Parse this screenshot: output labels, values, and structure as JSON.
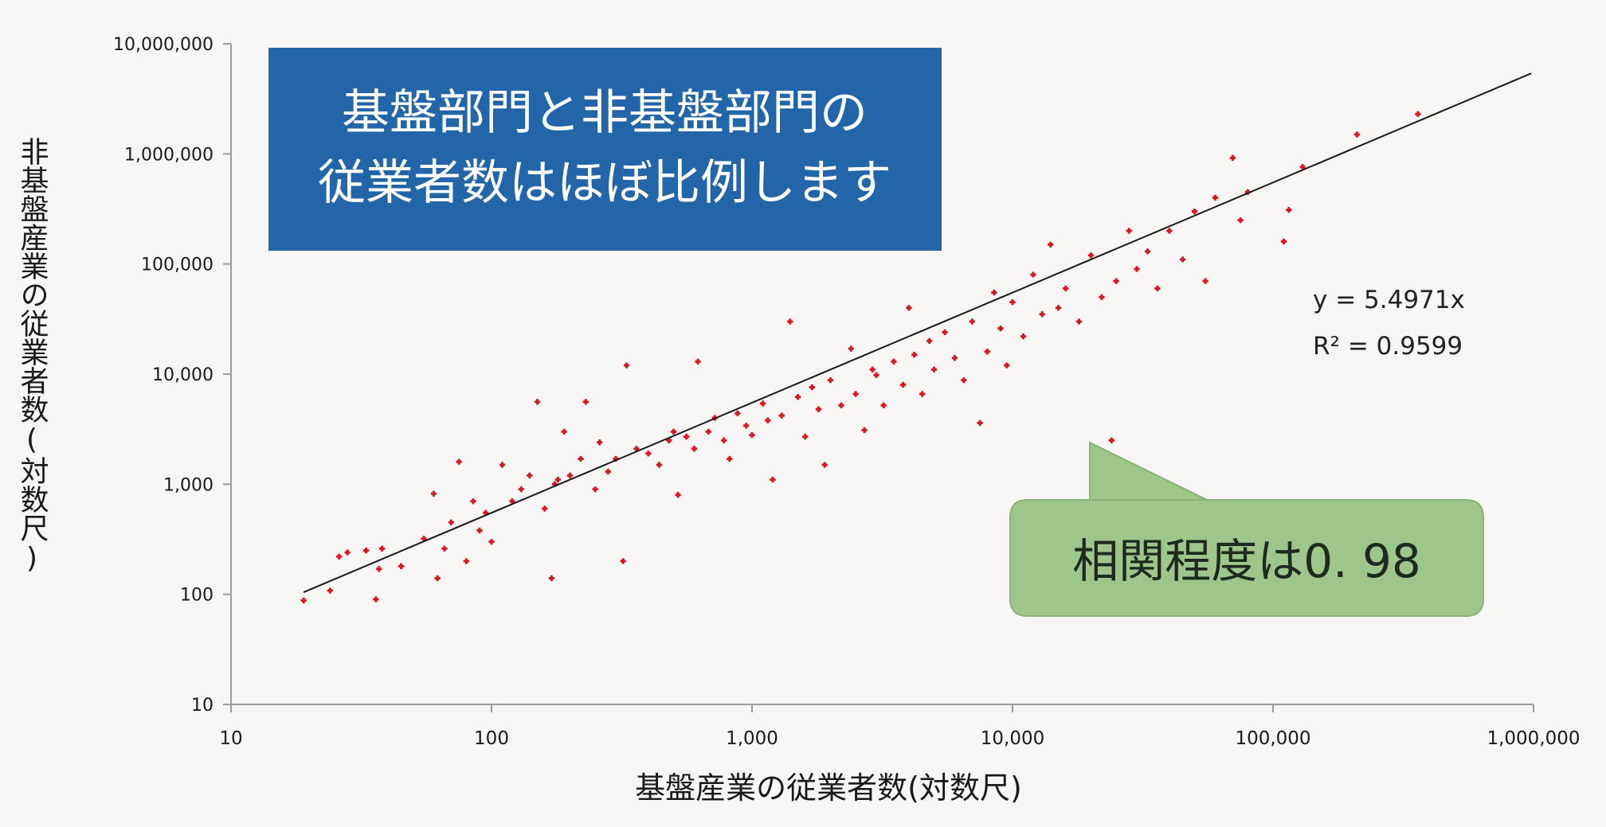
{
  "chart_data": {
    "type": "scatter",
    "title": "",
    "xlabel": "基盤産業の従業者数(対数尺)",
    "ylabel": "非基盤産業の従業者数(対数尺)",
    "x_scale": "log",
    "y_scale": "log",
    "xlim": [
      10,
      1000000
    ],
    "ylim": [
      10,
      10000000
    ],
    "x_ticks": [
      "10",
      "100",
      "1,000",
      "10,000",
      "100,000",
      "1,000,000"
    ],
    "y_ticks": [
      "10",
      "100",
      "1,000",
      "10,000",
      "100,000",
      "1,000,000",
      "10,000,000"
    ],
    "grid": false,
    "marker_color": "#d7141f",
    "trendline": {
      "slope": 5.4971,
      "x_range": [
        19,
        980000
      ],
      "color": "#1a1a1a"
    },
    "series": [
      {
        "points": [
          [
            19,
            88
          ],
          [
            24,
            108
          ],
          [
            26,
            220
          ],
          [
            28,
            240
          ],
          [
            33,
            250
          ],
          [
            36,
            90
          ],
          [
            37,
            170
          ],
          [
            38,
            260
          ],
          [
            45,
            180
          ],
          [
            55,
            320
          ],
          [
            60,
            820
          ],
          [
            62,
            140
          ],
          [
            66,
            260
          ],
          [
            70,
            450
          ],
          [
            75,
            1600
          ],
          [
            80,
            200
          ],
          [
            85,
            700
          ],
          [
            90,
            380
          ],
          [
            95,
            550
          ],
          [
            100,
            300
          ],
          [
            110,
            1500
          ],
          [
            120,
            700
          ],
          [
            130,
            900
          ],
          [
            140,
            1200
          ],
          [
            150,
            5600
          ],
          [
            160,
            600
          ],
          [
            170,
            140
          ],
          [
            175,
            1000
          ],
          [
            180,
            1100
          ],
          [
            190,
            3000
          ],
          [
            200,
            1200
          ],
          [
            220,
            1700
          ],
          [
            230,
            5600
          ],
          [
            250,
            900
          ],
          [
            260,
            2400
          ],
          [
            280,
            1300
          ],
          [
            300,
            1700
          ],
          [
            320,
            200
          ],
          [
            330,
            12000
          ],
          [
            360,
            2100
          ],
          [
            400,
            1900
          ],
          [
            440,
            1500
          ],
          [
            480,
            2500
          ],
          [
            500,
            3000
          ],
          [
            520,
            800
          ],
          [
            560,
            2700
          ],
          [
            600,
            2100
          ],
          [
            620,
            13000
          ],
          [
            680,
            3000
          ],
          [
            720,
            4000
          ],
          [
            780,
            2500
          ],
          [
            820,
            1700
          ],
          [
            880,
            4400
          ],
          [
            950,
            3400
          ],
          [
            1000,
            2800
          ],
          [
            1100,
            5400
          ],
          [
            1150,
            3800
          ],
          [
            1200,
            1100
          ],
          [
            1300,
            4200
          ],
          [
            1400,
            30000
          ],
          [
            1500,
            6200
          ],
          [
            1600,
            2700
          ],
          [
            1700,
            7600
          ],
          [
            1800,
            4800
          ],
          [
            1900,
            1500
          ],
          [
            2000,
            8800
          ],
          [
            2200,
            5200
          ],
          [
            2400,
            17000
          ],
          [
            2500,
            6600
          ],
          [
            2700,
            3100
          ],
          [
            2900,
            11000
          ],
          [
            3000,
            9800
          ],
          [
            3200,
            5200
          ],
          [
            3500,
            13000
          ],
          [
            3800,
            8000
          ],
          [
            4000,
            40000
          ],
          [
            4200,
            15000
          ],
          [
            4500,
            6600
          ],
          [
            4800,
            20000
          ],
          [
            5000,
            11000
          ],
          [
            5500,
            24000
          ],
          [
            6000,
            14000
          ],
          [
            6500,
            8800
          ],
          [
            7000,
            30000
          ],
          [
            7500,
            3600
          ],
          [
            8000,
            16000
          ],
          [
            8500,
            55000
          ],
          [
            9000,
            26000
          ],
          [
            9500,
            12000
          ],
          [
            10000,
            45000
          ],
          [
            11000,
            22000
          ],
          [
            12000,
            80000
          ],
          [
            13000,
            35000
          ],
          [
            14000,
            150000
          ],
          [
            15000,
            40000
          ],
          [
            16000,
            60000
          ],
          [
            18000,
            30000
          ],
          [
            20000,
            120000
          ],
          [
            22000,
            50000
          ],
          [
            24000,
            2500
          ],
          [
            25000,
            70000
          ],
          [
            28000,
            200000
          ],
          [
            30000,
            90000
          ],
          [
            33000,
            130000
          ],
          [
            36000,
            60000
          ],
          [
            40000,
            200000
          ],
          [
            45000,
            110000
          ],
          [
            50000,
            300000
          ],
          [
            55000,
            70000
          ],
          [
            60000,
            400000
          ],
          [
            70000,
            920000
          ],
          [
            75000,
            250000
          ],
          [
            80000,
            450000
          ],
          [
            110000,
            160000
          ],
          [
            115000,
            310000
          ],
          [
            130000,
            760000
          ],
          [
            210000,
            1500000
          ],
          [
            360000,
            2300000
          ]
        ]
      }
    ],
    "annotations": [
      {
        "text": "y = 5.4971x"
      },
      {
        "text": "R² = 0.9599"
      }
    ],
    "callouts": [
      {
        "lines": [
          "基盤部門と非基盤部門の",
          "従業者数はほぼ比例します"
        ],
        "fill": "#2265a8",
        "text_color": "#ffffff"
      },
      {
        "text": "相関程度は0. 98",
        "fill": "#9ec58a",
        "text_color": "#1e2a1e"
      }
    ]
  }
}
